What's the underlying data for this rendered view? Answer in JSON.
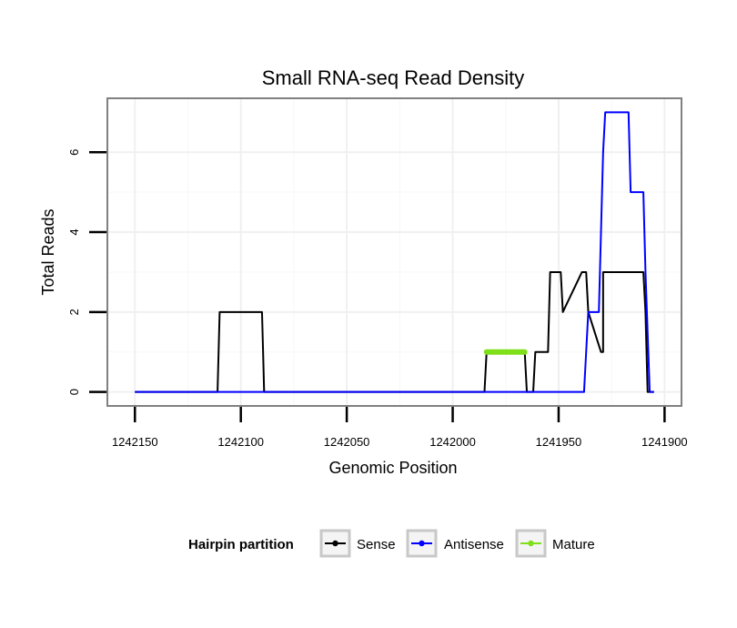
{
  "chart_data": {
    "type": "line",
    "title": "Small RNA-seq Read Density",
    "xlabel": "Genomic Position",
    "ylabel": "Total Reads",
    "xlim": [
      1242163,
      1241892
    ],
    "ylim": [
      -0.35,
      7.35
    ],
    "x_reversed": true,
    "grid": true,
    "legend_position": "bottom",
    "x_ticks": [
      1242150,
      1242100,
      1242050,
      1242000,
      1241950,
      1241900
    ],
    "x_tick_labels": [
      "1242150",
      "1242100",
      "1242050",
      "1242000",
      "1241950",
      "1241900"
    ],
    "y_ticks": [
      0,
      2,
      4,
      6
    ],
    "y_tick_labels": [
      "0",
      "2",
      "4",
      "6"
    ],
    "legend": {
      "title": "Hairpin partition",
      "entries": [
        "Sense",
        "Antisense",
        "Mature"
      ]
    },
    "series": [
      {
        "name": "Sense",
        "color": "#000000",
        "x": [
          1242150,
          1242111,
          1242110,
          1242090,
          1242089,
          1241985,
          1241984,
          1241966,
          1241965,
          1241962,
          1241961,
          1241955,
          1241954,
          1241949,
          1241948,
          1241939,
          1241938,
          1241937,
          1241936,
          1241930,
          1241929,
          1241929,
          1241928,
          1241910,
          1241909,
          1241909,
          1241908,
          1241906,
          1241905
        ],
        "values": [
          0,
          0,
          2,
          2,
          0,
          0,
          1,
          1,
          0,
          0,
          1,
          1,
          3,
          3,
          2,
          3,
          3,
          3,
          2,
          1,
          1,
          3,
          3,
          3,
          2,
          2,
          0,
          0,
          0
        ]
      },
      {
        "name": "Antisense",
        "color": "#0000ff",
        "x": [
          1242150,
          1241938,
          1241936,
          1241932,
          1241931,
          1241930,
          1241929,
          1241928,
          1241926,
          1241917,
          1241916,
          1241910,
          1241909,
          1241907,
          1241906,
          1241905
        ],
        "values": [
          0,
          0,
          2,
          2,
          2,
          4,
          6,
          7,
          7,
          7,
          5,
          5,
          3,
          0,
          0,
          0
        ]
      },
      {
        "name": "Mature",
        "color": "#7fe01a",
        "x": [
          1241984,
          1241966
        ],
        "values": [
          1,
          1
        ]
      }
    ]
  }
}
